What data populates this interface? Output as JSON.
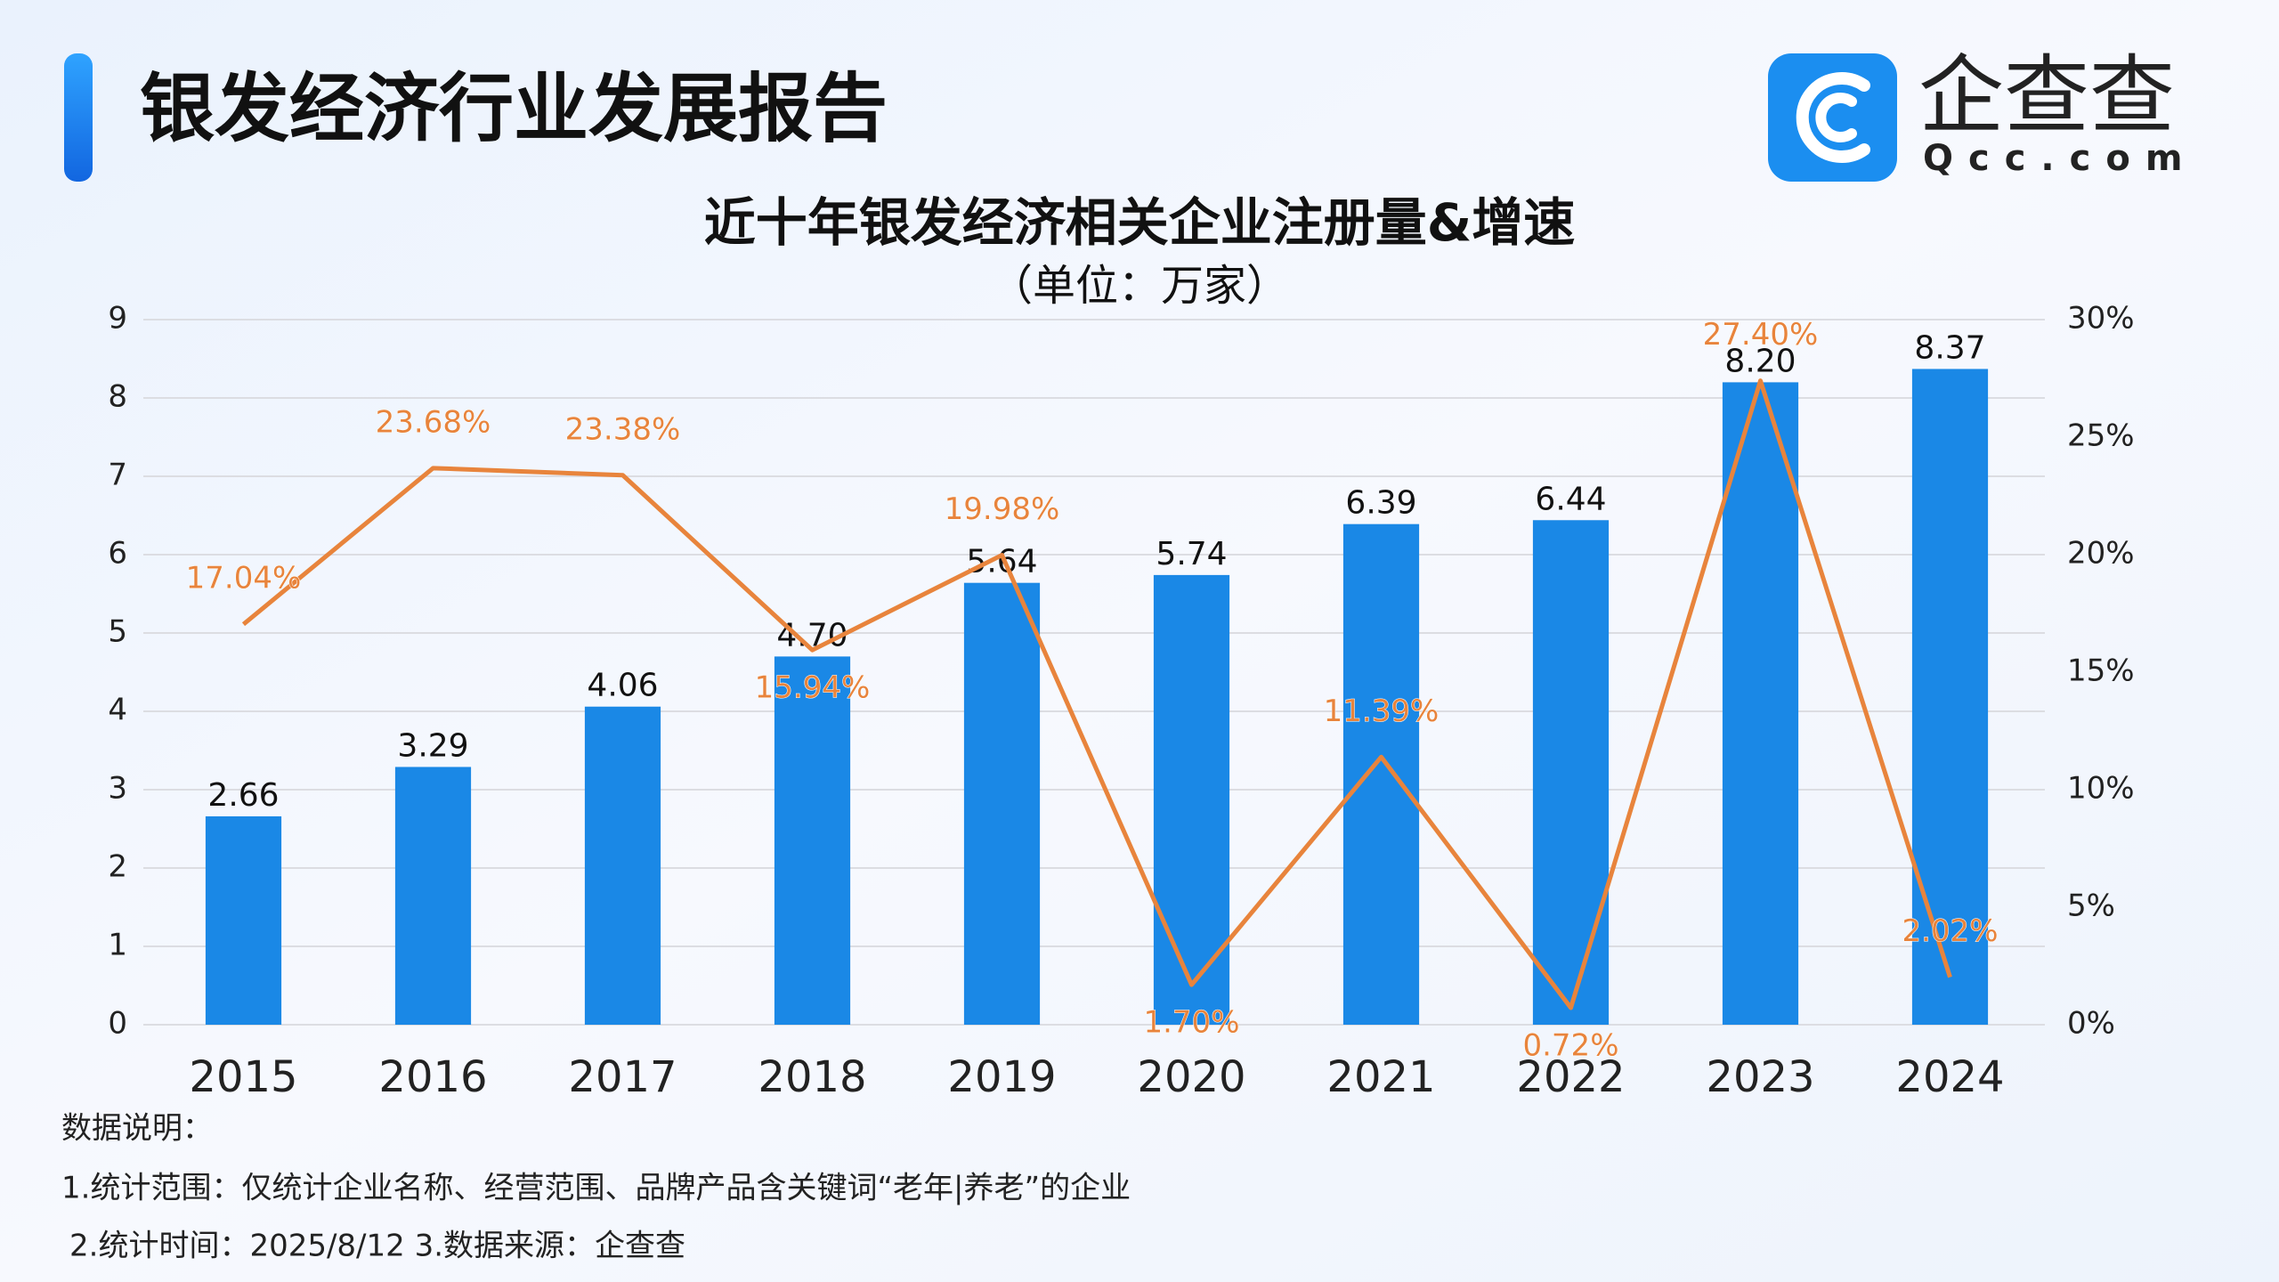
{
  "header": {
    "title": "银发经济行业发展报告",
    "logo_text": "企查查",
    "logo_subtext": "Qcc.com"
  },
  "chart_data": {
    "type": "bar",
    "title": "近十年银发经济相关企业注册量&增速",
    "subtitle": "（单位：万家）",
    "categories": [
      "2015",
      "2016",
      "2017",
      "2018",
      "2019",
      "2020",
      "2021",
      "2022",
      "2023",
      "2024"
    ],
    "series": [
      {
        "type": "bar",
        "color": "#1a88e6",
        "values": [
          2.66,
          3.29,
          4.06,
          4.7,
          5.64,
          5.74,
          6.39,
          6.44,
          8.2,
          8.37
        ],
        "value_labels": [
          "2.66",
          "3.29",
          "4.06",
          "4.70",
          "5.64",
          "5.74",
          "6.39",
          "6.44",
          "8.20",
          "8.37"
        ]
      },
      {
        "type": "line",
        "axis": "y2",
        "color": "#e8843c",
        "values": [
          17.04,
          23.68,
          23.38,
          15.94,
          19.98,
          1.7,
          11.39,
          0.72,
          27.4,
          2.02
        ],
        "value_labels": [
          "17.04%",
          "23.68%",
          "23.38%",
          "15.94%",
          "19.98%",
          "1.70%",
          "11.39%",
          "0.72%",
          "27.40%",
          "2.02%"
        ]
      }
    ],
    "ylim": [
      0,
      9
    ],
    "yticks": [
      0,
      1,
      2,
      3,
      4,
      5,
      6,
      7,
      8,
      9
    ],
    "y2lim": [
      0,
      30
    ],
    "y2ticks": [
      {
        "value": 0,
        "label": "0%"
      },
      {
        "value": 5,
        "label": "5%"
      },
      {
        "value": 10,
        "label": "10%"
      },
      {
        "value": 15,
        "label": "15%"
      },
      {
        "value": 20,
        "label": "20%"
      },
      {
        "value": 25,
        "label": "25%"
      },
      {
        "value": 30,
        "label": "30%"
      }
    ],
    "grid": true
  },
  "notes": [
    "数据说明：",
    "1.统计范围：仅统计企业名称、经营范围、品牌产品含关键词“老年|养老”的企业",
    "2.统计时间：2025/8/12 3.数据来源：企查查"
  ]
}
